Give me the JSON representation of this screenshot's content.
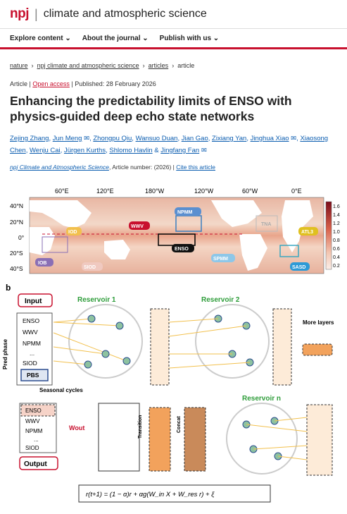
{
  "header": {
    "logo": "npj",
    "journal": "climate and atmospheric science"
  },
  "nav": {
    "explore": "Explore content ⌄",
    "about": "About the journal ⌄",
    "publish": "Publish with us ⌄"
  },
  "breadcrumb": {
    "items": [
      "nature",
      "npj climate and atmospheric science",
      "articles",
      "article"
    ]
  },
  "meta": {
    "type": "Article",
    "access": "Open access",
    "published": "Published: 28 February 2026"
  },
  "title": "Enhancing the predictability limits of ENSO with physics-guided deep echo state networks",
  "authors": [
    "Zejing Zhang",
    "Jun Meng",
    "Zhongpu Qiu",
    "Wansuo Duan",
    "Jian Gao",
    "Zixiang Yan",
    "Jinghua Xiao",
    "Xiaosong Chen",
    "Wenju Cai",
    "Jürgen Kurths",
    "Shlomo Havlin",
    "Jingfang Fan"
  ],
  "citation": {
    "journal": "npj Climate and Atmospheric Science",
    "rest": ", Article number:  (2026)",
    "cite": "Cite this article"
  },
  "map": {
    "lon_labels": [
      "60°E",
      "120°E",
      "180°W",
      "120°W",
      "60°W",
      "0°E"
    ],
    "lat_labels": [
      "40°N",
      "20°N",
      "0°",
      "20°S",
      "40°S"
    ],
    "colorbar": [
      "1.6",
      "1.4",
      "1.2",
      "1.0",
      "0.8",
      "0.6",
      "0.4",
      "0.2"
    ],
    "regions": [
      "NPMM",
      "WWV",
      "IOD",
      "ENSO",
      "TNA",
      "ATL3",
      "IOB",
      "SIOD",
      "SPMM",
      "SASD"
    ]
  },
  "diagram": {
    "panel": "b",
    "input": "Input",
    "output": "Output",
    "reservoir1": "Reservoir 1",
    "reservoir2": "Reservoir 2",
    "reservoirn": "Reservoir n",
    "inputs": [
      "ENSO",
      "WWV",
      "NPMM",
      "...",
      "SIOD",
      "PBS"
    ],
    "outputs": [
      "ENSO",
      "WWV",
      "NPMM",
      "...",
      "SIOD"
    ],
    "more_layers": "More layers",
    "seasonal": "Seasonal cycles",
    "pred_phase": "Pred phase",
    "transition": "Transition",
    "concat": "Concat",
    "wout": "Wout",
    "equation": "r(t+1) = (1 − α)r + αg(W_in X + W_res r) + ξ"
  },
  "colors": {
    "brand": "#c8102e",
    "link": "#0b5db0",
    "green": "#2e9d3a",
    "orange": "#f2a25c"
  }
}
